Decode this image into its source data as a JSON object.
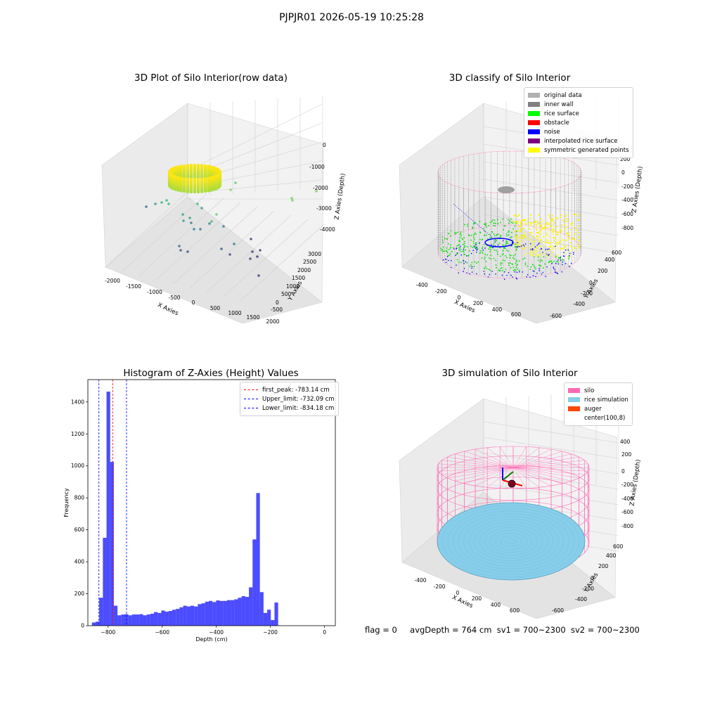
{
  "suptitle": "PJPJR01 2026-05-19 10:25:28",
  "footer": {
    "flag": "flag = 0",
    "avg_depth": "avgDepth = 764 cm",
    "sv1": "sv1 = 700~2300",
    "sv2": "sv2 = 700~2300"
  },
  "chart_data": [
    {
      "type": "scatter",
      "title": "3D Plot of Silo Interior(row data)",
      "xlabel": "X Axies",
      "ylabel": "Y Axies",
      "zlabel": "Z Axies (Depth)",
      "xticks": [
        "-2000",
        "-1500",
        "-1000",
        "-500",
        "0",
        "500",
        "1000",
        "1500",
        "2000"
      ],
      "yticks": [
        "-500",
        "0",
        "500",
        "1000",
        "1500",
        "2000",
        "2500",
        "3000"
      ],
      "zticks": [
        "0",
        "-1000",
        "-2000",
        "-3000",
        "-4000"
      ],
      "xlim": [
        -2000,
        2000
      ],
      "ylim": [
        -500,
        3000
      ],
      "zlim": [
        -4000,
        0
      ],
      "colormap": "viridis",
      "grid": true
    },
    {
      "type": "scatter",
      "title": "3D classify of Silo Interior",
      "xlabel": "X Axies",
      "ylabel": "Y Axies",
      "zlabel": "Z Axies (Depth)",
      "xticks": [
        "-400",
        "-200",
        "0",
        "200",
        "400",
        "600"
      ],
      "yticks": [
        "-600",
        "-400",
        "-200",
        "0",
        "200",
        "400",
        "600"
      ],
      "zticks": [
        "200",
        "0",
        "-200",
        "-400",
        "-600",
        "-800"
      ],
      "legend_position": "top-right",
      "legend": [
        {
          "label": "original data",
          "color": "#b0b0b0"
        },
        {
          "label": "inner wall",
          "color": "#808080"
        },
        {
          "label": "rice surface",
          "color": "#00ff00"
        },
        {
          "label": "obstacle",
          "color": "#ff0000"
        },
        {
          "label": "noise",
          "color": "#0000ff"
        },
        {
          "label": "interpolated rice surface",
          "color": "#800080"
        },
        {
          "label": "symmetric generated points",
          "color": "#ffff00"
        }
      ],
      "grid": true
    },
    {
      "type": "bar",
      "title": "Histogram of Z-Axies (Height) Values",
      "xlabel": "Depth (cm)",
      "ylabel": "Frequency",
      "xlim": [
        -875,
        40
      ],
      "ylim": [
        0,
        1540
      ],
      "xticks": [
        -800,
        -600,
        -400,
        -200,
        0
      ],
      "yticks": [
        0,
        200,
        400,
        600,
        800,
        1000,
        1200,
        1400
      ],
      "bin_start": -860,
      "bin_width": 13.5,
      "values": [
        20,
        25,
        175,
        550,
        1465,
        1025,
        125,
        65,
        70,
        72,
        65,
        70,
        70,
        72,
        65,
        70,
        75,
        85,
        80,
        95,
        88,
        92,
        100,
        105,
        115,
        125,
        120,
        125,
        120,
        135,
        140,
        150,
        155,
        148,
        158,
        155,
        155,
        160,
        160,
        165,
        175,
        185,
        180,
        240,
        540,
        830,
        210,
        80,
        100,
        35,
        145
      ],
      "bar_color": "#0000ff",
      "bar_alpha": 0.7,
      "vlines": [
        {
          "label": "first_peak: -783.14 cm",
          "x": -783.14,
          "color": "#ff0000"
        },
        {
          "label": "Upper_limit: -732.09 cm",
          "x": -732.09,
          "color": "#0000ff"
        },
        {
          "label": "Lower_limit: -834.18 cm",
          "x": -834.18,
          "color": "#0000ff"
        }
      ],
      "legend_position": "top-right"
    },
    {
      "type": "surface",
      "title": "3D simulation of Silo Interior",
      "xlabel": "X Axies",
      "ylabel": "Y Axies",
      "zlabel": "Z Axies (Depth)",
      "xticks": [
        "-400",
        "-200",
        "0",
        "200",
        "400",
        "600"
      ],
      "yticks": [
        "-600",
        "-400",
        "-200",
        "0",
        "200",
        "400",
        "600"
      ],
      "zticks": [
        "400",
        "200",
        "0",
        "-200",
        "-400",
        "-600",
        "-800"
      ],
      "legend_position": "top-right",
      "legend": [
        {
          "label": "silo",
          "color": "#ff69b4"
        },
        {
          "label": "rice simulation",
          "color": "#87ceeb"
        },
        {
          "label": "auger",
          "color": "#ff4500"
        },
        {
          "label": "center(100,8)",
          "color": "#ffffff"
        }
      ],
      "grid": true
    }
  ]
}
